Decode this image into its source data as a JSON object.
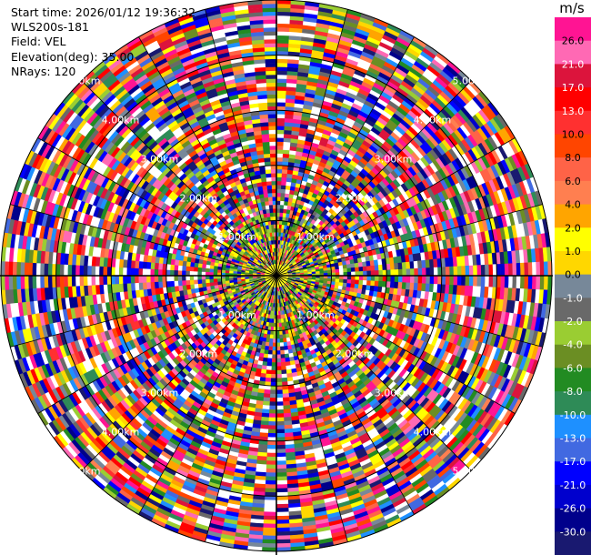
{
  "info": {
    "start_time": "Start time: 2026/01/12 19:36:32",
    "instrument": "WLS200s-181",
    "field": "Field: VEL",
    "elevation": "Elevation(deg): 35.00",
    "nrays": "NRays: 120"
  },
  "chart_data": {
    "type": "heatmap",
    "projection": "polar-ppi",
    "field": "VEL",
    "nrays": 120,
    "elevation_deg": 35.0,
    "range_max_km": 5.0,
    "range_rings_km": [
      1,
      2,
      3,
      4,
      5
    ],
    "ring_labels": [
      "1.00km",
      "2.00km",
      "3.00km",
      "4.00km",
      "5.00km"
    ],
    "colorbar": {
      "title": "m/s",
      "ticks": [
        "26.0",
        "21.0",
        "17.0",
        "13.0",
        "10.0",
        "8.0",
        "6.0",
        "4.0",
        "2.0",
        "1.0",
        "0.0",
        "-1.0",
        "-2.0",
        "-4.0",
        "-6.0",
        "-8.0",
        "-10.0",
        "-13.0",
        "-17.0",
        "-21.0",
        "-26.0",
        "-30.0"
      ],
      "colors": [
        "#ff1493",
        "#ff69b4",
        "#dc143c",
        "#ff0000",
        "#ff3030",
        "#ff4500",
        "#ff6347",
        "#ff7f50",
        "#ffa500",
        "#ffff00",
        "#ffd700",
        "#778899",
        "#696969",
        "#9acd32",
        "#6b8e23",
        "#228b22",
        "#2e8b57",
        "#1e90ff",
        "#4169e1",
        "#0000ff",
        "#0000cd",
        "#00008b",
        "#191970"
      ]
    }
  }
}
